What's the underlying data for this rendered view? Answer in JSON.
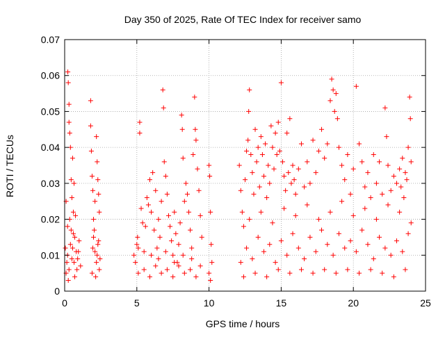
{
  "chart_data": {
    "type": "scatter",
    "title": "Day 350 of 2025, Rate Of TEC Index for receiver samo",
    "xlabel": "GPS time / hours",
    "ylabel": "ROTI / TECUs",
    "xlim": [
      0,
      25
    ],
    "ylim": [
      0,
      0.07
    ],
    "x_ticks": [
      0,
      5,
      10,
      15,
      20,
      25
    ],
    "x_tick_labels": [
      "0",
      "5",
      "10",
      "15",
      "20",
      "25"
    ],
    "y_ticks": [
      0,
      0.01,
      0.02,
      0.03,
      0.04,
      0.05,
      0.06,
      0.07
    ],
    "y_tick_labels": [
      "0",
      "0.01",
      "0.02",
      "0.03",
      "0.04",
      "0.05",
      "0.06",
      "0.07"
    ],
    "grid": true,
    "marker": "+",
    "color": "#ff0000",
    "series": [
      {
        "points": [
          [
            0.05,
            0.012
          ],
          [
            0.1,
            0.025
          ],
          [
            0.15,
            0.008
          ],
          [
            0.2,
            0.018
          ],
          [
            0.22,
            0.061
          ],
          [
            0.25,
            0.058
          ],
          [
            0.3,
            0.047
          ],
          [
            0.3,
            0.052
          ],
          [
            0.35,
            0.044
          ],
          [
            0.4,
            0.04
          ],
          [
            0.45,
            0.031
          ],
          [
            0.5,
            0.026
          ],
          [
            0.55,
            0.037
          ],
          [
            0.6,
            0.022
          ],
          [
            0.65,
            0.03
          ],
          [
            0.7,
            0.015
          ],
          [
            0.8,
            0.011
          ],
          [
            0.9,
            0.009
          ],
          [
            1.0,
            0.014
          ],
          [
            1.1,
            0.007
          ],
          [
            0.1,
            0.005
          ],
          [
            0.2,
            0.01
          ],
          [
            0.3,
            0.006
          ],
          [
            0.4,
            0.013
          ],
          [
            0.5,
            0.009
          ],
          [
            0.6,
            0.016
          ],
          [
            0.7,
            0.004
          ],
          [
            0.35,
            0.02
          ],
          [
            0.45,
            0.017
          ],
          [
            0.55,
            0.012
          ],
          [
            0.65,
            0.008
          ],
          [
            0.75,
            0.021
          ],
          [
            0.85,
            0.006
          ],
          [
            0.95,
            0.011
          ],
          [
            0.25,
            0.003
          ],
          [
            1.8,
            0.053
          ],
          [
            1.8,
            0.046
          ],
          [
            1.85,
            0.039
          ],
          [
            1.9,
            0.032
          ],
          [
            1.95,
            0.028
          ],
          [
            2.0,
            0.02
          ],
          [
            2.1,
            0.025
          ],
          [
            2.2,
            0.043
          ],
          [
            2.25,
            0.036
          ],
          [
            2.3,
            0.031
          ],
          [
            2.35,
            0.027
          ],
          [
            2.4,
            0.022
          ],
          [
            2.0,
            0.015
          ],
          [
            2.1,
            0.011
          ],
          [
            2.2,
            0.008
          ],
          [
            2.3,
            0.013
          ],
          [
            2.4,
            0.006
          ],
          [
            1.9,
            0.005
          ],
          [
            2.05,
            0.017
          ],
          [
            2.15,
            0.004
          ],
          [
            2.25,
            0.01
          ],
          [
            2.35,
            0.014
          ],
          [
            1.95,
            0.012
          ],
          [
            2.45,
            0.009
          ],
          [
            4.8,
            0.01
          ],
          [
            4.9,
            0.008
          ],
          [
            5.0,
            0.013
          ],
          [
            5.05,
            0.015
          ],
          [
            5.1,
            0.012
          ],
          [
            5.2,
            0.047
          ],
          [
            5.2,
            0.044
          ],
          [
            5.3,
            0.023
          ],
          [
            5.4,
            0.019
          ],
          [
            5.5,
            0.011
          ],
          [
            5.6,
            0.018
          ],
          [
            5.7,
            0.026
          ],
          [
            5.8,
            0.024
          ],
          [
            5.9,
            0.031
          ],
          [
            6.0,
            0.022
          ],
          [
            6.1,
            0.033
          ],
          [
            6.2,
            0.017
          ],
          [
            6.3,
            0.028
          ],
          [
            6.4,
            0.012
          ],
          [
            6.5,
            0.02
          ],
          [
            6.6,
            0.015
          ],
          [
            6.7,
            0.025
          ],
          [
            6.8,
            0.056
          ],
          [
            6.85,
            0.051
          ],
          [
            6.9,
            0.036
          ],
          [
            7.0,
            0.032
          ],
          [
            7.1,
            0.027
          ],
          [
            7.2,
            0.021
          ],
          [
            7.3,
            0.018
          ],
          [
            7.4,
            0.014
          ],
          [
            7.5,
            0.01
          ],
          [
            7.6,
            0.022
          ],
          [
            7.7,
            0.016
          ],
          [
            7.8,
            0.008
          ],
          [
            7.9,
            0.013
          ],
          [
            8.0,
            0.019
          ],
          [
            8.1,
            0.049
          ],
          [
            8.15,
            0.045
          ],
          [
            8.2,
            0.037
          ],
          [
            8.3,
            0.025
          ],
          [
            8.4,
            0.03
          ],
          [
            8.5,
            0.027
          ],
          [
            8.6,
            0.022
          ],
          [
            8.7,
            0.017
          ],
          [
            8.8,
            0.012
          ],
          [
            8.9,
            0.038
          ],
          [
            9.0,
            0.054
          ],
          [
            9.05,
            0.045
          ],
          [
            9.1,
            0.042
          ],
          [
            9.2,
            0.034
          ],
          [
            9.3,
            0.028
          ],
          [
            9.4,
            0.021
          ],
          [
            9.5,
            0.015
          ],
          [
            10.0,
            0.035
          ],
          [
            10.05,
            0.032
          ],
          [
            10.1,
            0.022
          ],
          [
            10.15,
            0.013
          ],
          [
            10.2,
            0.008
          ],
          [
            10.0,
            0.005
          ],
          [
            10.1,
            0.003
          ],
          [
            5.1,
            0.005
          ],
          [
            5.5,
            0.006
          ],
          [
            5.9,
            0.004
          ],
          [
            6.3,
            0.007
          ],
          [
            6.7,
            0.005
          ],
          [
            7.1,
            0.006
          ],
          [
            7.5,
            0.004
          ],
          [
            7.9,
            0.007
          ],
          [
            8.3,
            0.005
          ],
          [
            8.7,
            0.006
          ],
          [
            9.1,
            0.004
          ],
          [
            9.4,
            0.007
          ],
          [
            6.0,
            0.01
          ],
          [
            6.5,
            0.009
          ],
          [
            7.0,
            0.011
          ],
          [
            7.6,
            0.008
          ],
          [
            8.2,
            0.01
          ],
          [
            8.8,
            0.009
          ],
          [
            12.1,
            0.035
          ],
          [
            12.2,
            0.028
          ],
          [
            12.3,
            0.022
          ],
          [
            12.4,
            0.018
          ],
          [
            12.5,
            0.031
          ],
          [
            12.6,
            0.039
          ],
          [
            12.7,
            0.042
          ],
          [
            12.75,
            0.05
          ],
          [
            12.8,
            0.056
          ],
          [
            12.9,
            0.038
          ],
          [
            13.0,
            0.033
          ],
          [
            13.1,
            0.027
          ],
          [
            13.2,
            0.045
          ],
          [
            13.3,
            0.036
          ],
          [
            13.4,
            0.04
          ],
          [
            13.5,
            0.029
          ],
          [
            13.6,
            0.043
          ],
          [
            13.7,
            0.038
          ],
          [
            13.8,
            0.032
          ],
          [
            13.9,
            0.041
          ],
          [
            14.0,
            0.026
          ],
          [
            14.1,
            0.035
          ],
          [
            14.2,
            0.03
          ],
          [
            14.3,
            0.046
          ],
          [
            14.4,
            0.04
          ],
          [
            14.5,
            0.034
          ],
          [
            14.6,
            0.044
          ],
          [
            14.7,
            0.038
          ],
          [
            14.8,
            0.047
          ],
          [
            14.9,
            0.039
          ],
          [
            15.0,
            0.058
          ],
          [
            15.1,
            0.036
          ],
          [
            15.2,
            0.032
          ],
          [
            15.3,
            0.028
          ],
          [
            15.4,
            0.044
          ],
          [
            15.5,
            0.033
          ],
          [
            15.6,
            0.048
          ],
          [
            15.7,
            0.03
          ],
          [
            15.8,
            0.035
          ],
          [
            15.9,
            0.031
          ],
          [
            16.0,
            0.027
          ],
          [
            16.2,
            0.034
          ],
          [
            16.4,
            0.041
          ],
          [
            16.6,
            0.029
          ],
          [
            16.8,
            0.036
          ],
          [
            17.0,
            0.03
          ],
          [
            17.2,
            0.042
          ],
          [
            17.4,
            0.033
          ],
          [
            17.6,
            0.039
          ],
          [
            17.8,
            0.045
          ],
          [
            18.0,
            0.037
          ],
          [
            18.2,
            0.041
          ],
          [
            18.4,
            0.053
          ],
          [
            18.5,
            0.059
          ],
          [
            18.6,
            0.056
          ],
          [
            18.7,
            0.05
          ],
          [
            18.8,
            0.055
          ],
          [
            18.9,
            0.048
          ],
          [
            19.0,
            0.04
          ],
          [
            19.2,
            0.035
          ],
          [
            19.4,
            0.031
          ],
          [
            19.6,
            0.038
          ],
          [
            19.8,
            0.027
          ],
          [
            20.0,
            0.034
          ],
          [
            20.2,
            0.057
          ],
          [
            20.4,
            0.041
          ],
          [
            20.6,
            0.036
          ],
          [
            20.8,
            0.029
          ],
          [
            21.0,
            0.033
          ],
          [
            21.2,
            0.026
          ],
          [
            21.4,
            0.038
          ],
          [
            21.6,
            0.03
          ],
          [
            21.8,
            0.036
          ],
          [
            22.0,
            0.027
          ],
          [
            22.2,
            0.051
          ],
          [
            22.3,
            0.043
          ],
          [
            22.4,
            0.035
          ],
          [
            22.6,
            0.028
          ],
          [
            22.8,
            0.032
          ],
          [
            23.0,
            0.03
          ],
          [
            23.2,
            0.034
          ],
          [
            23.4,
            0.037
          ],
          [
            23.6,
            0.033
          ],
          [
            23.8,
            0.04
          ],
          [
            23.9,
            0.054
          ],
          [
            23.95,
            0.048
          ],
          [
            24.0,
            0.036
          ],
          [
            23.7,
            0.031
          ],
          [
            23.5,
            0.026
          ],
          [
            23.3,
            0.029
          ],
          [
            12.2,
            0.008
          ],
          [
            12.6,
            0.012
          ],
          [
            13.0,
            0.009
          ],
          [
            13.4,
            0.015
          ],
          [
            13.8,
            0.011
          ],
          [
            14.2,
            0.013
          ],
          [
            14.6,
            0.008
          ],
          [
            15.0,
            0.014
          ],
          [
            15.4,
            0.01
          ],
          [
            15.8,
            0.016
          ],
          [
            16.2,
            0.012
          ],
          [
            16.6,
            0.009
          ],
          [
            17.0,
            0.015
          ],
          [
            17.4,
            0.011
          ],
          [
            17.8,
            0.017
          ],
          [
            18.2,
            0.013
          ],
          [
            18.6,
            0.01
          ],
          [
            19.0,
            0.016
          ],
          [
            19.4,
            0.012
          ],
          [
            19.8,
            0.014
          ],
          [
            20.2,
            0.011
          ],
          [
            20.6,
            0.017
          ],
          [
            21.0,
            0.013
          ],
          [
            21.4,
            0.009
          ],
          [
            21.8,
            0.015
          ],
          [
            22.2,
            0.012
          ],
          [
            22.6,
            0.01
          ],
          [
            23.0,
            0.014
          ],
          [
            23.4,
            0.011
          ],
          [
            23.8,
            0.016
          ],
          [
            12.4,
            0.004
          ],
          [
            13.2,
            0.005
          ],
          [
            14.0,
            0.004
          ],
          [
            14.8,
            0.006
          ],
          [
            15.6,
            0.005
          ],
          [
            16.4,
            0.006
          ],
          [
            17.2,
            0.005
          ],
          [
            18.0,
            0.006
          ],
          [
            18.8,
            0.005
          ],
          [
            19.6,
            0.006
          ],
          [
            20.4,
            0.005
          ],
          [
            21.2,
            0.006
          ],
          [
            22.0,
            0.005
          ],
          [
            22.8,
            0.004
          ],
          [
            23.6,
            0.006
          ],
          [
            12.8,
            0.02
          ],
          [
            13.6,
            0.022
          ],
          [
            14.4,
            0.019
          ],
          [
            15.2,
            0.023
          ],
          [
            16.0,
            0.021
          ],
          [
            16.8,
            0.024
          ],
          [
            17.6,
            0.02
          ],
          [
            18.4,
            0.022
          ],
          [
            19.2,
            0.025
          ],
          [
            20.0,
            0.021
          ],
          [
            20.8,
            0.023
          ],
          [
            21.6,
            0.02
          ],
          [
            22.4,
            0.024
          ],
          [
            23.2,
            0.022
          ],
          [
            24.0,
            0.019
          ]
        ]
      }
    ]
  }
}
